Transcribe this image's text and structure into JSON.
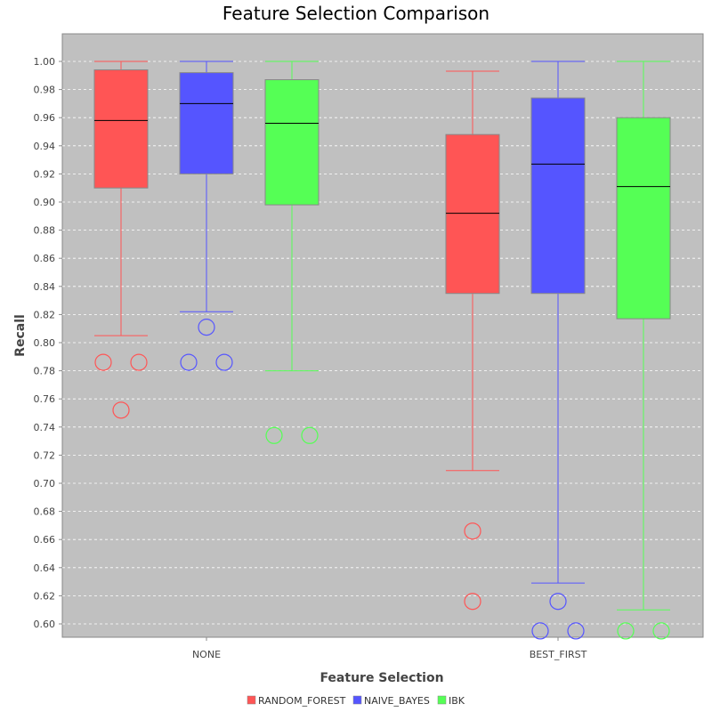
{
  "chart_data": {
    "type": "box",
    "title": "Feature Selection Comparison",
    "xlabel": "Feature Selection",
    "ylabel": "Recall",
    "ylim": [
      0.59,
      1.02
    ],
    "yticks": [
      0.6,
      0.62,
      0.64,
      0.66,
      0.68,
      0.7,
      0.72,
      0.74,
      0.76,
      0.78,
      0.8,
      0.82,
      0.84,
      0.86,
      0.88,
      0.9,
      0.92,
      0.94,
      0.96,
      0.98,
      1.0
    ],
    "grid": true,
    "legend_position": "bottom",
    "categories": [
      "NONE",
      "BEST_FIRST"
    ],
    "series": [
      {
        "name": "RANDOM_FOREST",
        "color": "#ff5555",
        "boxes": [
          {
            "min": 0.805,
            "q1": 0.91,
            "median": 0.958,
            "q3": 0.994,
            "max": 1.0,
            "outliers": [
              0.786,
              0.786,
              0.752
            ]
          },
          {
            "min": 0.709,
            "q1": 0.835,
            "median": 0.892,
            "q3": 0.948,
            "max": 0.993,
            "outliers": [
              0.666,
              0.616
            ]
          }
        ]
      },
      {
        "name": "NAIVE_BAYES",
        "color": "#5555ff",
        "boxes": [
          {
            "min": 0.822,
            "q1": 0.92,
            "median": 0.97,
            "q3": 0.992,
            "max": 1.0,
            "outliers": [
              0.811,
              0.786,
              0.786
            ]
          },
          {
            "min": 0.629,
            "q1": 0.835,
            "median": 0.927,
            "q3": 0.974,
            "max": 1.0,
            "outliers": [
              0.616,
              0.595,
              0.595
            ]
          }
        ]
      },
      {
        "name": "IBK",
        "color": "#55ff55",
        "boxes": [
          {
            "min": 0.78,
            "q1": 0.898,
            "median": 0.956,
            "q3": 0.987,
            "max": 1.0,
            "outliers": [
              0.734,
              0.734
            ]
          },
          {
            "min": 0.61,
            "q1": 0.817,
            "median": 0.911,
            "q3": 0.96,
            "max": 1.0,
            "outliers": [
              0.595,
              0.595
            ]
          }
        ]
      }
    ]
  }
}
